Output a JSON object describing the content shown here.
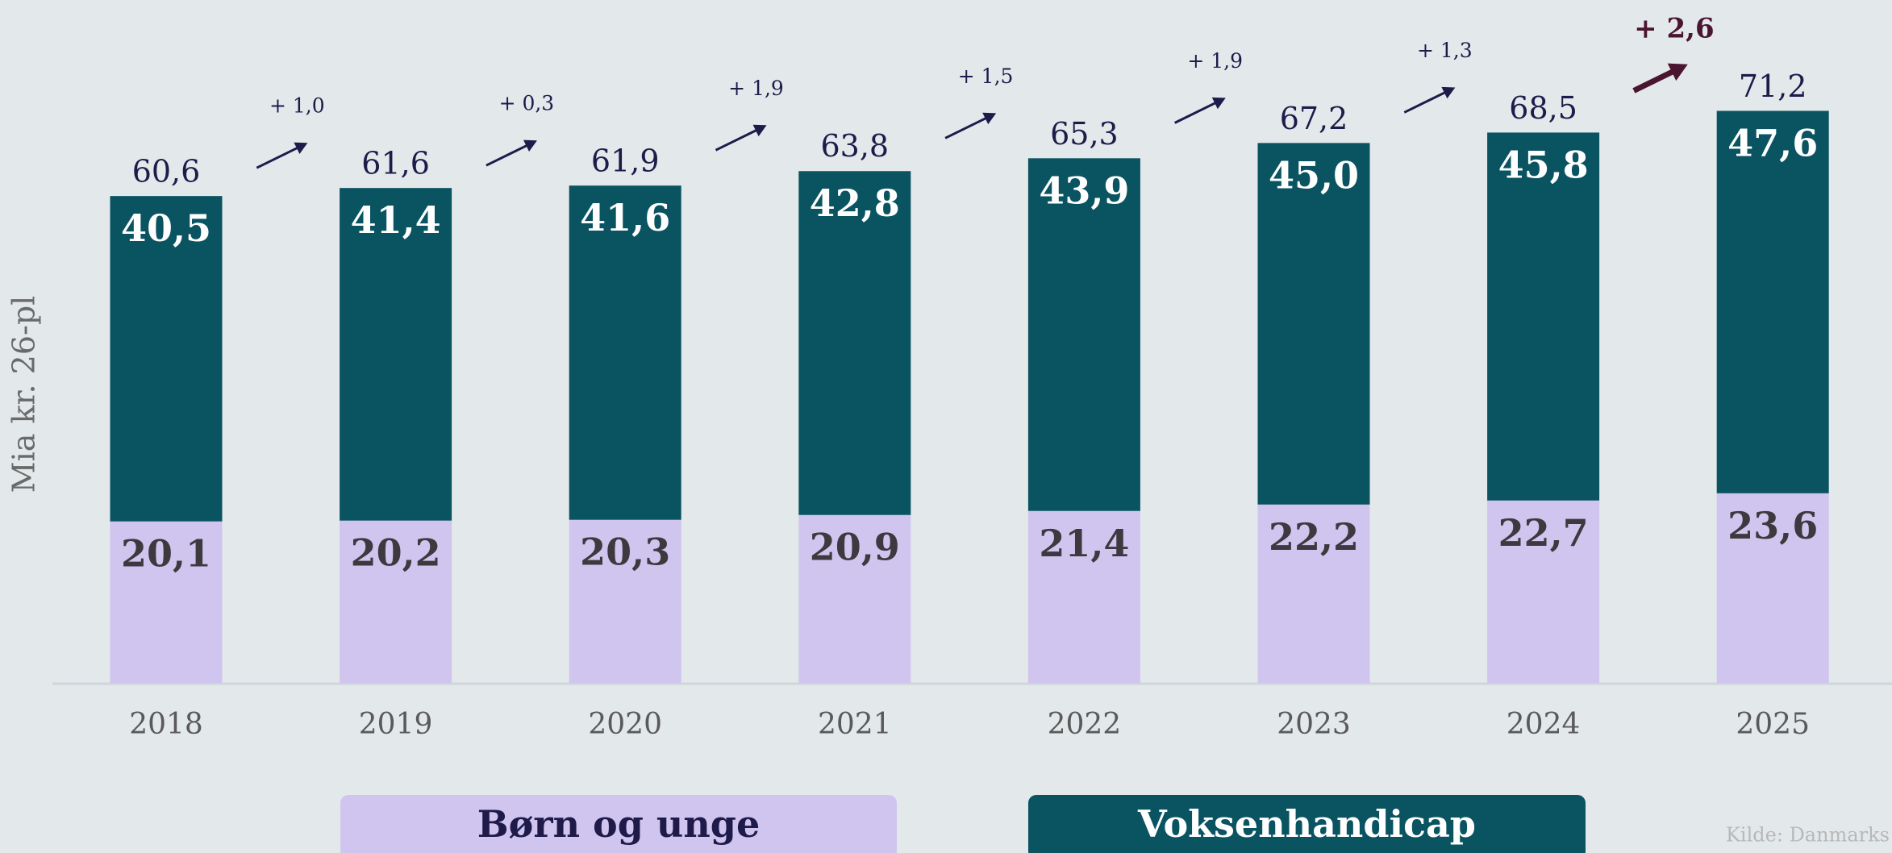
{
  "chart_data": {
    "type": "stacked_bar",
    "y_label": "Mia kr. 26-pl",
    "source": "Kilde: Danmarks",
    "categories": [
      "2018",
      "2019",
      "2020",
      "2021",
      "2022",
      "2023",
      "2024",
      "2025"
    ],
    "series": [
      {
        "name": "Børn og unge",
        "color": "#d0c5ef",
        "label_color": "#3d393f",
        "values": [
          20.1,
          20.2,
          20.3,
          20.9,
          21.4,
          22.2,
          22.7,
          23.6
        ],
        "value_labels": [
          "20,1",
          "20,2",
          "20,3",
          "20,9",
          "21,4",
          "22,2",
          "22,7",
          "23,6"
        ]
      },
      {
        "name": "Voksenhandicap",
        "color": "#0a5462",
        "label_color": "#ffffff",
        "values": [
          40.5,
          41.4,
          41.6,
          42.8,
          43.9,
          45.0,
          45.8,
          47.6
        ],
        "value_labels": [
          "40,5",
          "41,4",
          "41,6",
          "42,8",
          "43,9",
          "45,0",
          "45,8",
          "47,6"
        ]
      }
    ],
    "totals": [
      60.6,
      61.6,
      61.9,
      63.8,
      65.3,
      67.2,
      68.5,
      71.2
    ],
    "total_labels": [
      "60,6",
      "61,6",
      "61,9",
      "63,8",
      "65,3",
      "67,2",
      "68,5",
      "71,2"
    ],
    "annotations": [
      {
        "text": "+ 1,0",
        "color": "#1e1b4b"
      },
      {
        "text": "+ 0,3",
        "color": "#1e1b4b"
      },
      {
        "text": "+ 1,9",
        "color": "#1e1b4b"
      },
      {
        "text": "+ 1,5",
        "color": "#1e1b4b"
      },
      {
        "text": "+ 1,9",
        "color": "#1e1b4b"
      },
      {
        "text": "+ 1,3",
        "color": "#1e1b4b"
      },
      {
        "text": "+ 2,6",
        "color": "#4a1530"
      }
    ],
    "ylim": [
      0,
      85
    ]
  }
}
